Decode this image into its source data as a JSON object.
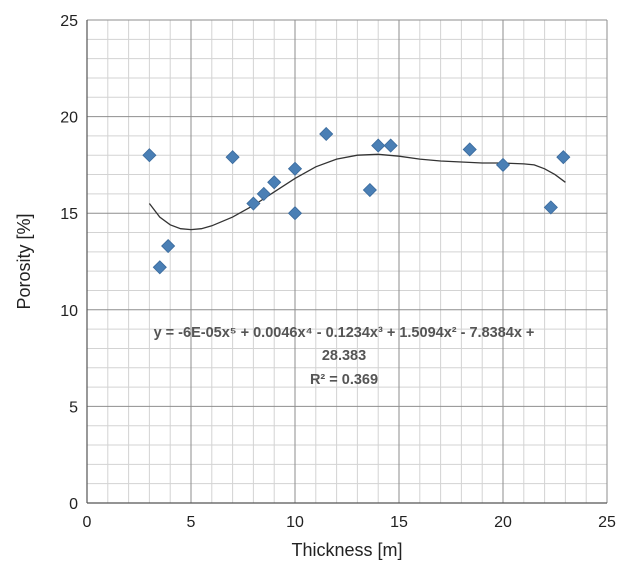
{
  "chart_data": {
    "type": "scatter",
    "xlabel": "Thickness [m]",
    "ylabel": "Porosity [%]",
    "xlim": [
      0,
      25
    ],
    "ylim": [
      0,
      25
    ],
    "x_ticks": [
      "0",
      "5",
      "10",
      "15",
      "20",
      "25"
    ],
    "y_ticks": [
      "0",
      "5",
      "10",
      "15",
      "20",
      "25"
    ],
    "grid": true,
    "legend": "none",
    "marker": "diamond",
    "marker_color": "#4a7fb5",
    "trendline_color": "#333333",
    "points": [
      {
        "x": 3.0,
        "y": 18.0
      },
      {
        "x": 3.5,
        "y": 12.2
      },
      {
        "x": 3.9,
        "y": 13.3
      },
      {
        "x": 7.0,
        "y": 17.9
      },
      {
        "x": 8.0,
        "y": 15.5
      },
      {
        "x": 8.5,
        "y": 16.0
      },
      {
        "x": 9.0,
        "y": 16.6
      },
      {
        "x": 10.0,
        "y": 15.0
      },
      {
        "x": 10.0,
        "y": 17.3
      },
      {
        "x": 11.5,
        "y": 19.1
      },
      {
        "x": 13.6,
        "y": 16.2
      },
      {
        "x": 14.0,
        "y": 18.5
      },
      {
        "x": 14.6,
        "y": 18.5
      },
      {
        "x": 18.4,
        "y": 18.3
      },
      {
        "x": 20.0,
        "y": 17.5
      },
      {
        "x": 22.3,
        "y": 15.3
      },
      {
        "x": 22.9,
        "y": 17.9
      }
    ],
    "trendline": {
      "type": "polynomial",
      "order": 5,
      "x_range": [
        3,
        23
      ],
      "curve": [
        {
          "x": 3.0,
          "y": 15.5
        },
        {
          "x": 3.5,
          "y": 14.8
        },
        {
          "x": 4.0,
          "y": 14.4
        },
        {
          "x": 4.5,
          "y": 14.2
        },
        {
          "x": 5.0,
          "y": 14.15
        },
        {
          "x": 5.5,
          "y": 14.2
        },
        {
          "x": 6.0,
          "y": 14.35
        },
        {
          "x": 7.0,
          "y": 14.8
        },
        {
          "x": 8.0,
          "y": 15.4
        },
        {
          "x": 9.0,
          "y": 16.1
        },
        {
          "x": 10.0,
          "y": 16.8
        },
        {
          "x": 11.0,
          "y": 17.4
        },
        {
          "x": 12.0,
          "y": 17.8
        },
        {
          "x": 13.0,
          "y": 18.0
        },
        {
          "x": 14.0,
          "y": 18.05
        },
        {
          "x": 15.0,
          "y": 17.95
        },
        {
          "x": 16.0,
          "y": 17.8
        },
        {
          "x": 17.0,
          "y": 17.7
        },
        {
          "x": 18.0,
          "y": 17.65
        },
        {
          "x": 19.0,
          "y": 17.6
        },
        {
          "x": 20.0,
          "y": 17.6
        },
        {
          "x": 21.0,
          "y": 17.55
        },
        {
          "x": 21.5,
          "y": 17.5
        },
        {
          "x": 22.0,
          "y": 17.3
        },
        {
          "x": 22.5,
          "y": 17.0
        },
        {
          "x": 23.0,
          "y": 16.6
        }
      ]
    },
    "equation": {
      "line1": "y = -6E-05x⁵ + 0.0046x⁴ - 0.1234x³ + 1.5094x² - 7.8384x +",
      "line2": "28.383",
      "r_squared": "R² = 0.369"
    }
  }
}
